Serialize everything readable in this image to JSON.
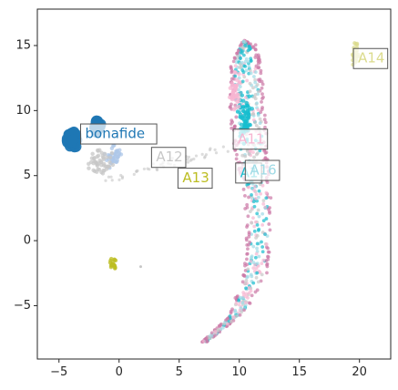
{
  "chart_data": {
    "type": "scatter",
    "title": "",
    "xlabel": "",
    "ylabel": "",
    "xlim": [
      -6.8,
      22.6
    ],
    "ylim": [
      -9.1,
      17.8
    ],
    "grid": false,
    "x_ticks": [
      -5,
      0,
      5,
      10,
      15,
      20
    ],
    "x_tick_labels": [
      "−5",
      "0",
      "5",
      "10",
      "15",
      "20"
    ],
    "y_ticks": [
      -5,
      0,
      5,
      10,
      15
    ],
    "y_tick_labels": [
      "−5",
      "0",
      "5",
      "10",
      "15"
    ],
    "clusters": [
      {
        "group": "bonafide",
        "color": "#1f77b4",
        "center": [
          -3.9,
          7.7
        ],
        "spread": [
          0.6,
          0.9
        ],
        "n": 60
      },
      {
        "group": "bonafide",
        "color": "#1f77b4",
        "center": [
          -1.8,
          8.7
        ],
        "spread": [
          0.5,
          0.6
        ],
        "n": 30
      },
      {
        "group": "bonafide-fringe",
        "color": "#aec7e8",
        "center": [
          -0.5,
          6.5
        ],
        "spread": [
          1.0,
          1.2
        ],
        "n": 40
      },
      {
        "group": "grey",
        "color": "#c7c7c7",
        "center": [
          -1.5,
          6.0
        ],
        "spread": [
          1.4,
          1.4
        ],
        "n": 50
      },
      {
        "group": "A13",
        "color": "#bcbd22",
        "center": [
          -0.5,
          -1.8
        ],
        "spread": [
          0.35,
          0.6
        ],
        "n": 22
      },
      {
        "group": "A14",
        "color": "#dbdb8d",
        "center": [
          19.6,
          14.4
        ],
        "spread": [
          0.4,
          1.2
        ],
        "n": 26
      },
      {
        "group": "A15",
        "color": "#17becf",
        "center": [
          10.5,
          9.5
        ],
        "spread": [
          0.7,
          2.5
        ],
        "n": 70
      },
      {
        "group": "A11",
        "color": "#f7b6d2",
        "center": [
          9.6,
          11.5
        ],
        "spread": [
          0.6,
          2.0
        ],
        "n": 40
      }
    ],
    "arc_left": [
      [
        6.9,
        -7.8
      ],
      [
        8.9,
        -6.0
      ],
      [
        10.1,
        -3.5
      ],
      [
        10.6,
        0.0
      ],
      [
        10.4,
        3.5
      ],
      [
        9.8,
        6.0
      ],
      [
        9.3,
        8.5
      ],
      [
        9.1,
        11.0
      ],
      [
        9.3,
        13.5
      ],
      [
        10.2,
        15.2
      ]
    ],
    "arc_right": [
      [
        7.3,
        -7.8
      ],
      [
        10.5,
        -5.5
      ],
      [
        12.3,
        -2.5
      ],
      [
        12.8,
        1.0
      ],
      [
        12.5,
        5.0
      ],
      [
        12.3,
        9.0
      ],
      [
        12.0,
        12.5
      ],
      [
        11.5,
        15.0
      ],
      [
        10.4,
        15.4
      ]
    ],
    "arc_colors": [
      "#cc79a7",
      "#17becf",
      "#c7c7c7",
      "#f7b6d2",
      "#9edae5"
    ],
    "bridge_color": "#c7c7c7",
    "annotations": [
      {
        "text": "bonafide",
        "x": -3.2,
        "y": 8.2,
        "color": "#1f77b4"
      },
      {
        "text": "A12",
        "x": 2.7,
        "y": 6.4,
        "color": "#c7c7c7"
      },
      {
        "text": "A13",
        "x": 4.9,
        "y": 4.8,
        "color": "#bcbd22"
      },
      {
        "text": "A11",
        "x": 9.5,
        "y": 7.8,
        "color": "#f7b6d2"
      },
      {
        "text": "A1",
        "x": 9.7,
        "y": 5.2,
        "color": "#17becf"
      },
      {
        "text": "A16",
        "x": 10.5,
        "y": 5.4,
        "color": "#9edae5"
      },
      {
        "text": "A14",
        "x": 19.5,
        "y": 14.0,
        "color": "#dbdb8d"
      }
    ],
    "outlier": {
      "x": 1.8,
      "y": -2.0,
      "color": "#c7c7c7"
    }
  }
}
